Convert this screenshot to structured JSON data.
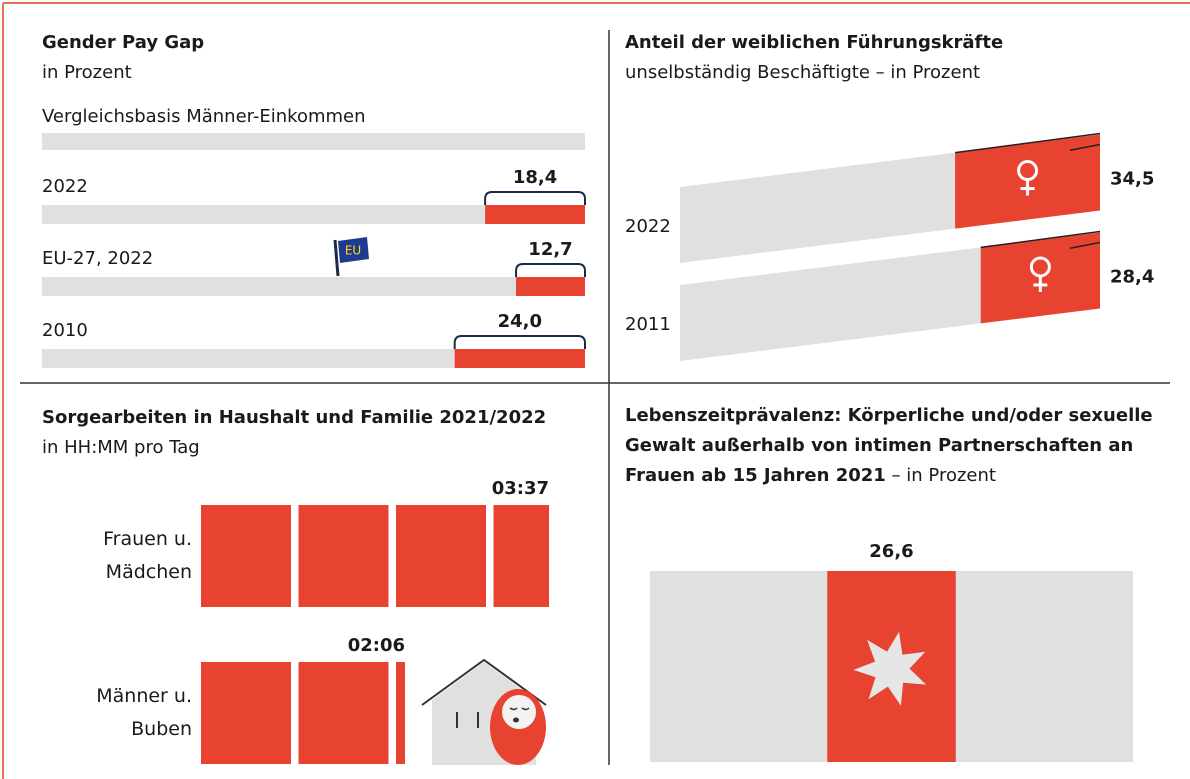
{
  "chart_data": [
    {
      "type": "bar",
      "title": "Gender Pay Gap",
      "subtitle": "in Prozent",
      "reference_label": "Vergleichsbasis Männer-Einkommen",
      "annotation": "EU",
      "categories": [
        "2022",
        "EU-27, 2022",
        "2010"
      ],
      "values": [
        18.4,
        12.7,
        24.0
      ],
      "value_labels": [
        "18,4",
        "12,7",
        "24,0"
      ],
      "xlim": [
        0,
        100
      ],
      "color": "#e84330",
      "base_color": "#e0e0e0"
    },
    {
      "type": "slanted-bar",
      "title": "Anteil der weiblichen Führungskräfte",
      "subtitle": "unselbständig Beschäftigte – in Prozent",
      "categories": [
        "2022",
        "2011"
      ],
      "values": [
        34.5,
        28.4
      ],
      "value_labels": [
        "34,5",
        "28,4"
      ],
      "xlim": [
        0,
        100
      ],
      "color": "#e84330",
      "base_color": "#e0e0e0"
    },
    {
      "type": "time-blocks",
      "title": "Sorgearbeiten in Haushalt und Familie 2021/2022",
      "subtitle": "in HH:MM pro Tag",
      "categories": [
        "Frauen u. Mädchen",
        "Männer u. Buben"
      ],
      "values": [
        217,
        126
      ],
      "value_labels": [
        "03:37",
        "02:06"
      ],
      "color": "#e84330"
    },
    {
      "type": "proportion",
      "title": "Lebenszeitprävalenz: Körperliche und/oder sexuelle Gewalt außerhalb von intimen Partnerschaften an Frauen ab 15 Jahren 2021",
      "subtitle": "– in Prozent",
      "values": [
        26.6
      ],
      "value_labels": [
        "26,6"
      ],
      "xlim": [
        0,
        100
      ],
      "color": "#e84330",
      "base_color": "#e0e0e0"
    }
  ]
}
